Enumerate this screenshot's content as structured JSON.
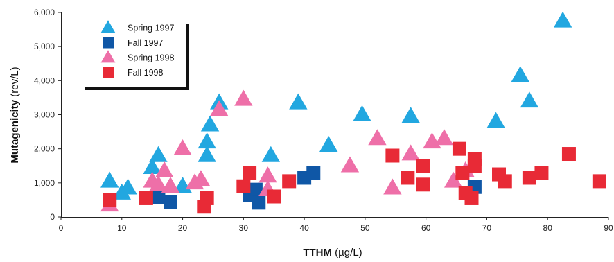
{
  "chart_data": {
    "type": "scatter",
    "title": "",
    "xlabel": {
      "bold": "TTHM",
      "unit": " (µg/L)"
    },
    "ylabel": {
      "bold": "Mutagenicity",
      "unit": " (rev/L)"
    },
    "xlim": [
      0,
      90
    ],
    "ylim": [
      0,
      6000
    ],
    "x_ticks": [
      0,
      10,
      20,
      30,
      40,
      50,
      60,
      70,
      80,
      90
    ],
    "x_tick_labels": [
      "0",
      "10",
      "20",
      "30",
      "40",
      "50",
      "60",
      "70",
      "80",
      "90"
    ],
    "y_ticks": [
      0,
      1000,
      2000,
      3000,
      4000,
      5000,
      6000
    ],
    "y_tick_labels": [
      "0",
      "1,000",
      "2,000",
      "3,000",
      "4,000",
      "5,000",
      "6,000"
    ],
    "grid": false,
    "legend_position": "top-left",
    "series": [
      {
        "name": "Spring 1997",
        "marker": "triangle",
        "color": "#22a7e0",
        "points": [
          [
            8,
            1050
          ],
          [
            10,
            700
          ],
          [
            11,
            850
          ],
          [
            15,
            1450
          ],
          [
            16,
            1800
          ],
          [
            20,
            900
          ],
          [
            24,
            1800
          ],
          [
            24,
            2200
          ],
          [
            24.5,
            2700
          ],
          [
            26,
            3350
          ],
          [
            34.5,
            1800
          ],
          [
            39,
            3350
          ],
          [
            44,
            2100
          ],
          [
            49.5,
            3000
          ],
          [
            57.5,
            2950
          ],
          [
            71.5,
            2800
          ],
          [
            75.5,
            4150
          ],
          [
            77,
            3400
          ],
          [
            82.5,
            5750
          ]
        ]
      },
      {
        "name": "Fall 1997",
        "marker": "square",
        "color": "#0f57a6",
        "points": [
          [
            16,
            580
          ],
          [
            18,
            430
          ],
          [
            31,
            650
          ],
          [
            32,
            800
          ],
          [
            32.5,
            420
          ],
          [
            40,
            1150
          ],
          [
            41.5,
            1300
          ],
          [
            68,
            880
          ]
        ]
      },
      {
        "name": "Spring 1998",
        "marker": "triangle",
        "color": "#ee6fa8",
        "points": [
          [
            8,
            350
          ],
          [
            15,
            1050
          ],
          [
            16,
            950
          ],
          [
            17,
            1350
          ],
          [
            18,
            900
          ],
          [
            20,
            2000
          ],
          [
            22,
            1000
          ],
          [
            23,
            1100
          ],
          [
            26,
            3150
          ],
          [
            30,
            3450
          ],
          [
            34,
            800
          ],
          [
            34,
            1200
          ],
          [
            47.5,
            1500
          ],
          [
            52,
            2300
          ],
          [
            54.5,
            850
          ],
          [
            57.5,
            1850
          ],
          [
            61,
            2200
          ],
          [
            63,
            2300
          ],
          [
            64.5,
            1050
          ],
          [
            66.5,
            1350
          ]
        ]
      },
      {
        "name": "Fall 1998",
        "marker": "square",
        "color": "#e82a36",
        "points": [
          [
            8,
            500
          ],
          [
            14,
            550
          ],
          [
            23.5,
            300
          ],
          [
            24,
            550
          ],
          [
            30,
            900
          ],
          [
            31,
            1300
          ],
          [
            35,
            600
          ],
          [
            37.5,
            1050
          ],
          [
            54.5,
            1800
          ],
          [
            57,
            1150
          ],
          [
            59.5,
            950
          ],
          [
            59.5,
            1500
          ],
          [
            65.5,
            2000
          ],
          [
            66,
            1300
          ],
          [
            66.5,
            700
          ],
          [
            67.5,
            550
          ],
          [
            68,
            1700
          ],
          [
            68,
            1500
          ],
          [
            72,
            1250
          ],
          [
            73,
            1050
          ],
          [
            77,
            1150
          ],
          [
            79,
            1300
          ],
          [
            83.5,
            1850
          ],
          [
            88.5,
            1050
          ]
        ]
      }
    ]
  }
}
